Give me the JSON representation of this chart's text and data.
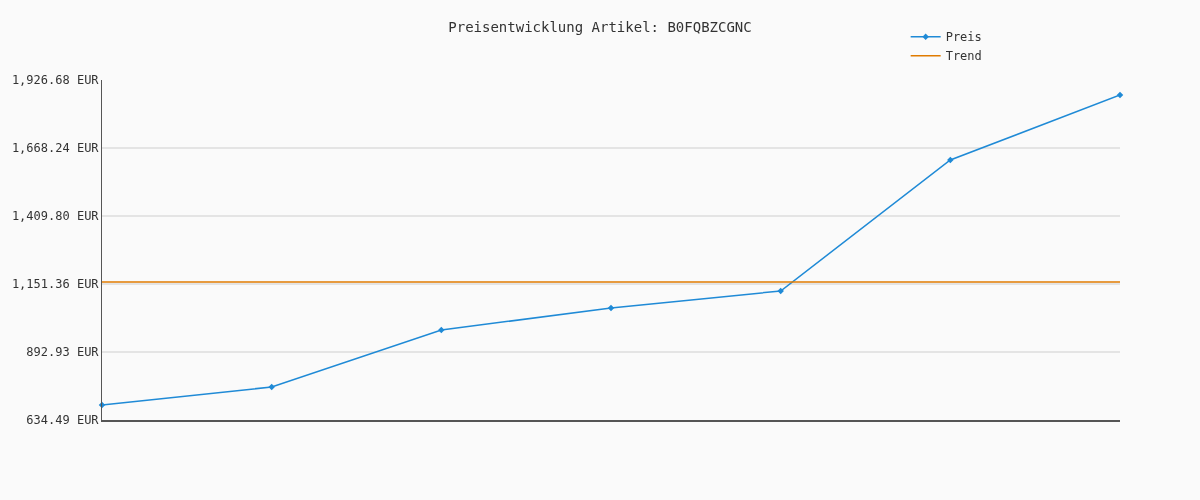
{
  "chart_data": {
    "type": "line",
    "title": "Preisentwicklung Artikel: B0FQBZCGNC",
    "categories": [
      null,
      null,
      null,
      null,
      null,
      null,
      null
    ],
    "series": [
      {
        "name": "Preis",
        "color": "#1f8ad6",
        "values": [
          691.5,
          759.9,
          976.5,
          1060,
          1124.8,
          1622.6,
          1869.7
        ]
      },
      {
        "name": "Trend",
        "color": "#e07b00",
        "marker": "none",
        "values": [
          1159,
          1159,
          1159,
          1159,
          1159,
          1159,
          1159
        ]
      }
    ],
    "ylim": [
      634.49,
      1926.68
    ],
    "yticks": [
      {
        "value": 634.49,
        "label": "634.49 EUR"
      },
      {
        "value": 892.93,
        "label": "892.93 EUR"
      },
      {
        "value": 1151.36,
        "label": "1,151.36 EUR"
      },
      {
        "value": 1409.8,
        "label": "1,409.80 EUR"
      },
      {
        "value": 1668.24,
        "label": "1,668.24 EUR"
      },
      {
        "value": 1926.68,
        "label": "1,926.68 EUR"
      }
    ],
    "grid": "y",
    "legend": "top right",
    "marker": "diamond",
    "line_style": "solid",
    "tick_labels": "y"
  }
}
